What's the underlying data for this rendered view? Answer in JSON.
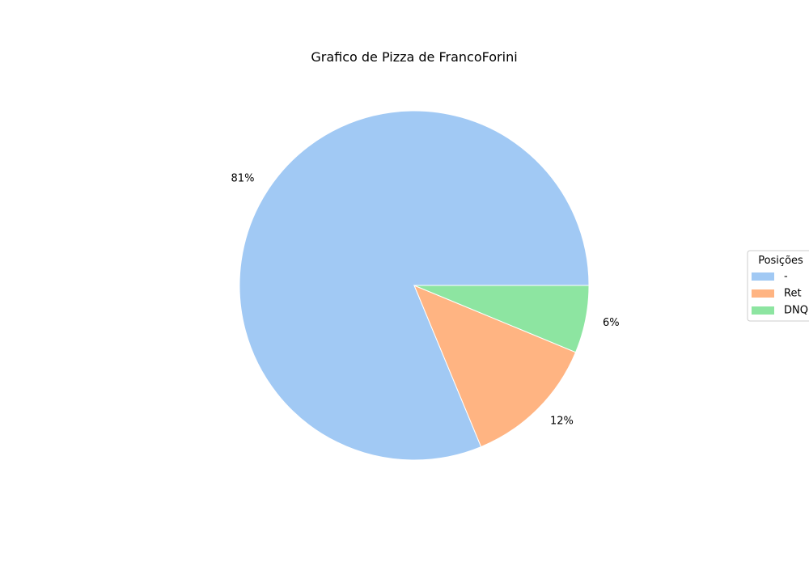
{
  "chart_data": {
    "type": "pie",
    "title": "Grafico de Pizza de FrancoForini",
    "categories": [
      "-",
      "Ret",
      "DNQ"
    ],
    "values": [
      81.25,
      12.5,
      6.25
    ],
    "labels": [
      "81%",
      "12%",
      "6%"
    ],
    "colors": [
      "#a1c9f4",
      "#ffb482",
      "#8de5a1"
    ],
    "start_angle_deg": 0,
    "direction": "counterclockwise",
    "legend": {
      "title": "Posições",
      "placement": "center-right"
    }
  }
}
